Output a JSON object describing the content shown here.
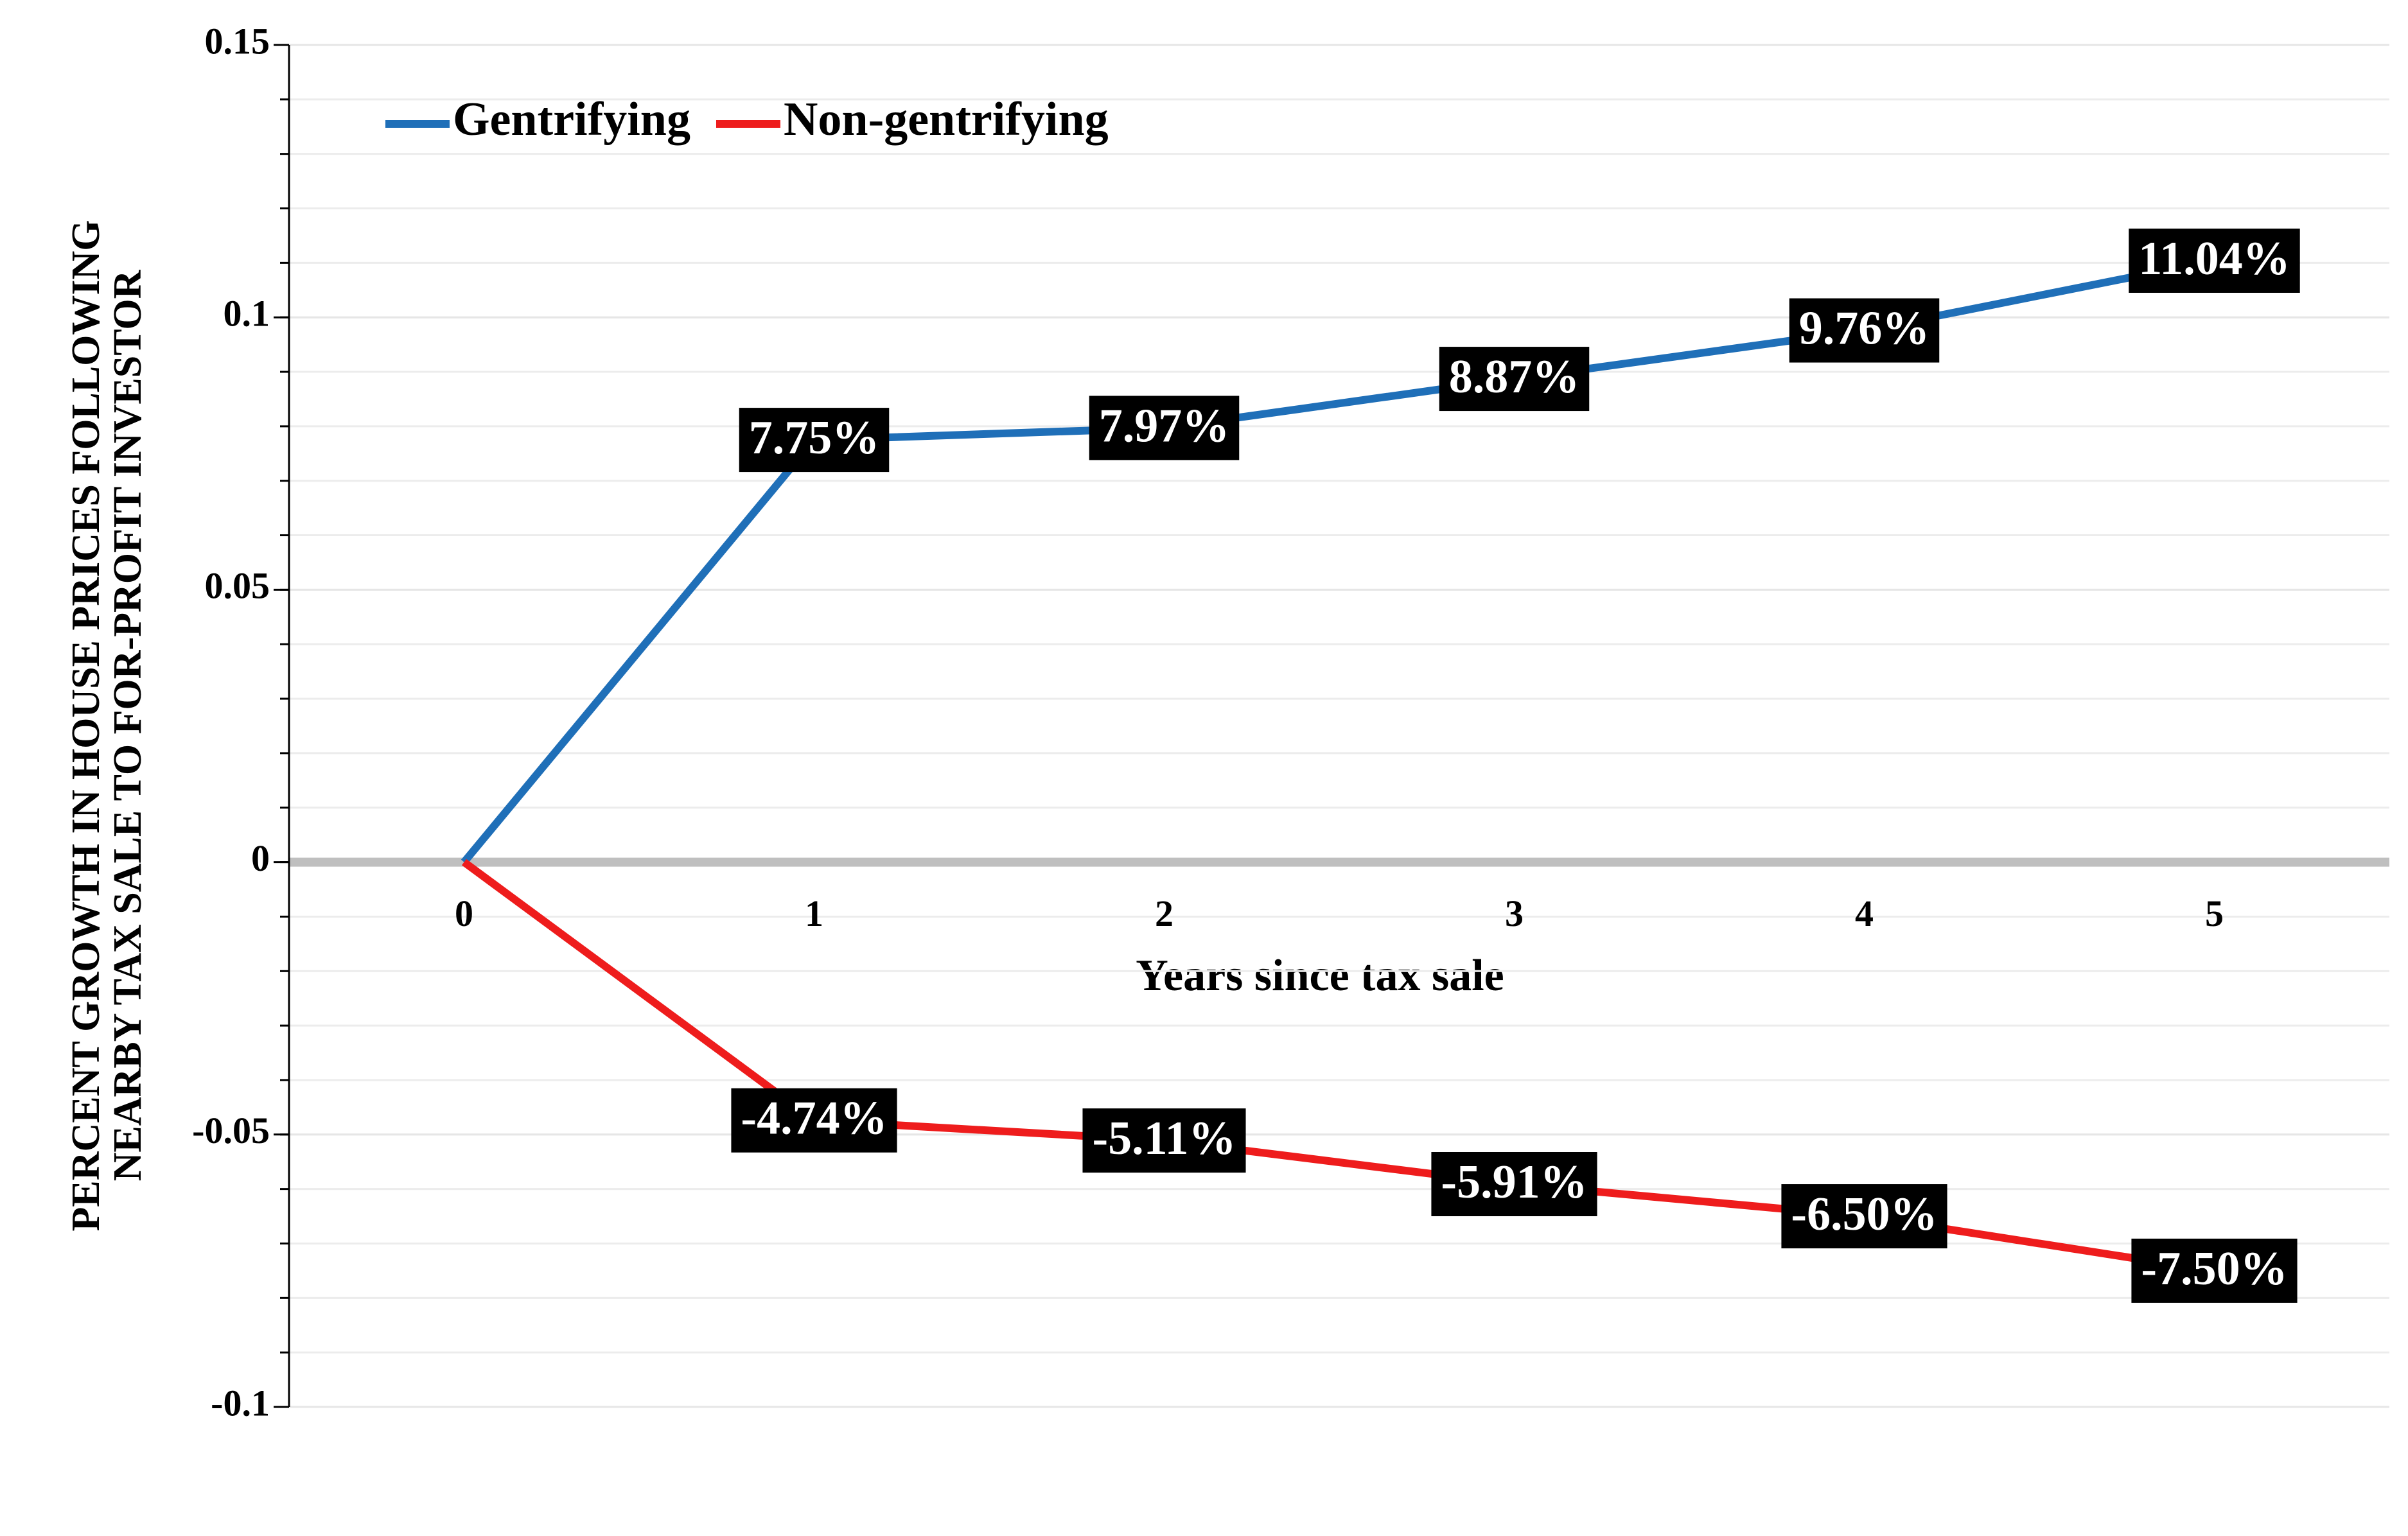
{
  "chart_data": {
    "type": "line",
    "x_label": "Years since tax sale",
    "y_label": [
      "PERCENT GROWTH IN HOUSE PRICES FOLLOWING",
      "NEARBY TAX SALE TO FOR-PROFIT INVESTOR"
    ],
    "categories": [
      "0",
      "1",
      "2",
      "3",
      "4",
      "5"
    ],
    "series": [
      {
        "name": "Gentrifying",
        "color": "#1f6fb8",
        "values": [
          0,
          0.0775,
          0.0797,
          0.0887,
          0.0976,
          0.1104
        ],
        "value_labels": [
          null,
          "7.75%",
          "7.97%",
          "8.87%",
          "9.76%",
          "11.04%"
        ]
      },
      {
        "name": "Non-gentrifying",
        "color": "#ee1c1c",
        "values": [
          0,
          -0.0474,
          -0.0511,
          -0.0591,
          -0.065,
          -0.075
        ],
        "value_labels": [
          null,
          "-4.74%",
          "-5.11%",
          "-5.91%",
          "-6.50%",
          "-7.50%"
        ]
      }
    ],
    "ylim": [
      -0.1,
      0.15
    ],
    "yticks": [
      -0.1,
      -0.05,
      0,
      0.05,
      0.1,
      0.15
    ],
    "minor_grid_step": 0.01,
    "grid": true,
    "legend": "upper left"
  }
}
